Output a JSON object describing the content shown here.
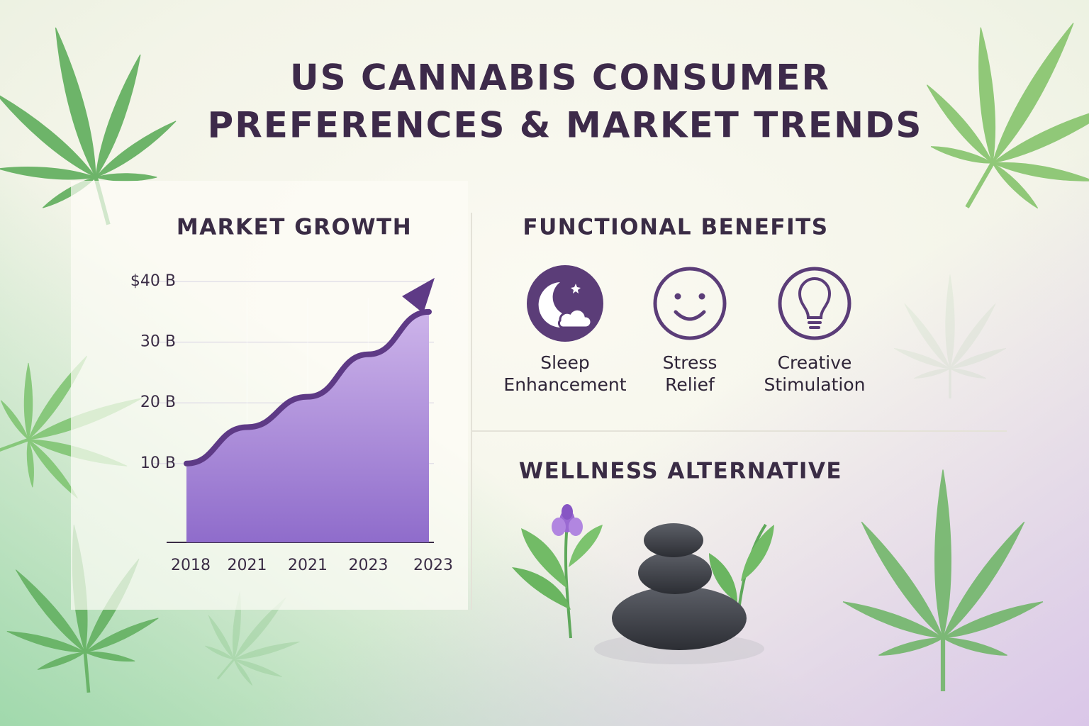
{
  "title": [
    "US CANNABIS CONSUMER",
    "PREFERENCES & MARKET TRENDS"
  ],
  "chart_data": {
    "type": "line",
    "title": "MARKET GROWTH",
    "categories": [
      "2018",
      "2021",
      "2021",
      "2023",
      "2023"
    ],
    "values": [
      10,
      16,
      21,
      28,
      35
    ],
    "color": "#5e3a86",
    "fill": "#a585d6",
    "ylim": [
      -3,
      42
    ],
    "yticks": [
      {
        "value": 10,
        "label": "10 B"
      },
      {
        "value": 20,
        "label": "20 B"
      },
      {
        "value": 30,
        "label": "30 B"
      },
      {
        "value": 40,
        "label": "$40 B"
      }
    ],
    "grid": true
  },
  "benefits": {
    "title": "FUNCTIONAL BENEFITS",
    "items": [
      {
        "label": [
          "Sleep",
          "Enhancement"
        ]
      },
      {
        "label": [
          "Stress",
          "Relief"
        ]
      },
      {
        "label": [
          "Creative",
          "Stimulation"
        ]
      }
    ]
  },
  "wellness": {
    "title": "WELLNESS ALTERNATIVE"
  }
}
